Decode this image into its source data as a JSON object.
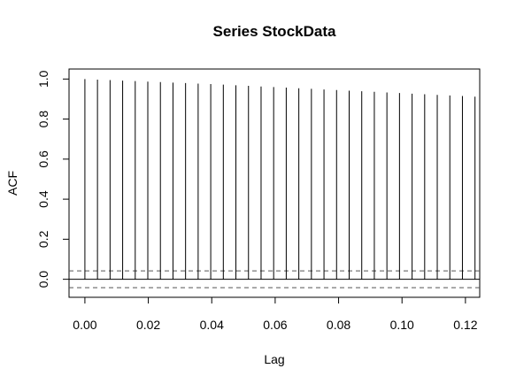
{
  "chart_data": {
    "type": "bar",
    "title": "Series  StockData",
    "xlabel": "Lag",
    "ylabel": "ACF",
    "xlim": [
      -0.005,
      0.1245
    ],
    "ylim": [
      -0.09,
      1.05
    ],
    "xticks": [
      0.0,
      0.02,
      0.04,
      0.06,
      0.08,
      0.1,
      0.12
    ],
    "xtick_labels": [
      "0.00",
      "0.02",
      "0.04",
      "0.06",
      "0.08",
      "0.10",
      "0.12"
    ],
    "yticks": [
      0.0,
      0.2,
      0.4,
      0.6,
      0.8,
      1.0
    ],
    "ytick_labels": [
      "0.0",
      "0.2",
      "0.4",
      "0.6",
      "0.8",
      "1.0"
    ],
    "confidence_bound": 0.042,
    "lags": [
      0.0,
      0.003968,
      0.007937,
      0.011905,
      0.015873,
      0.019841,
      0.02381,
      0.027778,
      0.031746,
      0.035714,
      0.039683,
      0.043651,
      0.047619,
      0.051587,
      0.055556,
      0.059524,
      0.063492,
      0.06746,
      0.071429,
      0.075397,
      0.079365,
      0.083333,
      0.087302,
      0.09127,
      0.095238,
      0.099206,
      0.103175,
      0.107143,
      0.111111,
      0.115079,
      0.119048,
      0.123016
    ],
    "values": [
      1.0,
      0.997,
      0.995,
      0.992,
      0.99,
      0.987,
      0.985,
      0.982,
      0.98,
      0.977,
      0.975,
      0.972,
      0.969,
      0.966,
      0.963,
      0.96,
      0.957,
      0.954,
      0.951,
      0.948,
      0.945,
      0.942,
      0.939,
      0.936,
      0.933,
      0.93,
      0.927,
      0.924,
      0.921,
      0.918,
      0.915,
      0.912
    ]
  }
}
